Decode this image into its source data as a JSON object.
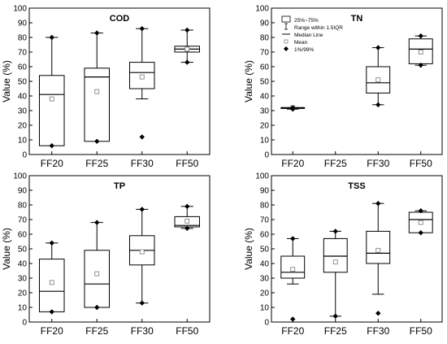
{
  "chart_data": [
    {
      "type": "box",
      "title": "COD",
      "ylabel": "Value (%)",
      "xlabel": "",
      "ylim": [
        0,
        100
      ],
      "yticks": [
        0,
        10,
        20,
        30,
        40,
        50,
        60,
        70,
        80,
        90,
        100
      ],
      "categories": [
        "FF20",
        "FF25",
        "FF30",
        "FF50"
      ],
      "boxes": [
        {
          "category": "FF20",
          "q1": 6,
          "median": 41,
          "q3": 54,
          "mean": 38,
          "whisker_low": null,
          "whisker_high": null,
          "p1": 6,
          "p99": 80
        },
        {
          "category": "FF25",
          "q1": 9,
          "median": 53,
          "q3": 59,
          "mean": 43,
          "whisker_low": null,
          "whisker_high": null,
          "p1": 9,
          "p99": 83
        },
        {
          "category": "FF30",
          "q1": 45,
          "median": 56,
          "q3": 63,
          "mean": 53,
          "whisker_low": 38,
          "whisker_high": 86,
          "p1": 12,
          "p99": 86
        },
        {
          "category": "FF50",
          "q1": 70,
          "median": 72,
          "q3": 74,
          "mean": 72,
          "whisker_low": 63,
          "whisker_high": 85,
          "p1": 63,
          "p99": 85
        }
      ],
      "legend": null
    },
    {
      "type": "box",
      "title": "TN",
      "ylabel": "Value (%)",
      "xlabel": "",
      "ylim": [
        0,
        100
      ],
      "yticks": [
        0,
        10,
        20,
        30,
        40,
        50,
        60,
        70,
        80,
        90,
        100
      ],
      "categories": [
        "FF20",
        "FF25",
        "FF30",
        "FF50"
      ],
      "boxes": [
        {
          "category": "FF20",
          "q1": 32,
          "median": 32,
          "q3": 32,
          "mean": 32,
          "whisker_low": null,
          "whisker_high": null,
          "p1": 31,
          "p99": 32
        },
        {
          "category": "FF25",
          "q1": null,
          "median": null,
          "q3": null,
          "mean": null,
          "whisker_low": null,
          "whisker_high": null,
          "p1": null,
          "p99": null
        },
        {
          "category": "FF30",
          "q1": 42,
          "median": 49,
          "q3": 60,
          "mean": 51,
          "whisker_low": 34,
          "whisker_high": 73,
          "p1": 34,
          "p99": 73
        },
        {
          "category": "FF50",
          "q1": 62,
          "median": 72,
          "q3": 79,
          "mean": 70,
          "whisker_low": 61,
          "whisker_high": 81,
          "p1": 61,
          "p99": 81
        }
      ],
      "legend": {
        "position": "top-left",
        "entries": [
          "25%~75%",
          "Range within 1.5IQR",
          "Median Line",
          "Mean",
          "1%/99%"
        ]
      }
    },
    {
      "type": "box",
      "title": "TP",
      "ylabel": "Value (%)",
      "xlabel": "",
      "ylim": [
        0,
        100
      ],
      "yticks": [
        0,
        10,
        20,
        30,
        40,
        50,
        60,
        70,
        80,
        90,
        100
      ],
      "categories": [
        "FF20",
        "FF25",
        "FF30",
        "FF50"
      ],
      "boxes": [
        {
          "category": "FF20",
          "q1": 7,
          "median": 21,
          "q3": 43,
          "mean": 27,
          "whisker_low": null,
          "whisker_high": null,
          "p1": 7,
          "p99": 54
        },
        {
          "category": "FF25",
          "q1": 10,
          "median": 26,
          "q3": 49,
          "mean": 33,
          "whisker_low": null,
          "whisker_high": null,
          "p1": 10,
          "p99": 68
        },
        {
          "category": "FF30",
          "q1": 39,
          "median": 49,
          "q3": 59,
          "mean": 48,
          "whisker_low": null,
          "whisker_high": null,
          "p1": 13,
          "p99": 77
        },
        {
          "category": "FF50",
          "q1": 65,
          "median": 66,
          "q3": 72,
          "mean": 69,
          "whisker_low": 64,
          "whisker_high": 79,
          "p1": 64,
          "p99": 79
        }
      ],
      "legend": null
    },
    {
      "type": "box",
      "title": "TSS",
      "ylabel": "Value (%)",
      "xlabel": "",
      "ylim": [
        0,
        100
      ],
      "yticks": [
        0,
        10,
        20,
        30,
        40,
        50,
        60,
        70,
        80,
        90,
        100
      ],
      "categories": [
        "FF20",
        "FF25",
        "FF30",
        "FF50"
      ],
      "boxes": [
        {
          "category": "FF20",
          "q1": 30,
          "median": 34,
          "q3": 45,
          "mean": 36,
          "whisker_low": 26,
          "whisker_high": 57,
          "p1": 2,
          "p99": 57
        },
        {
          "category": "FF25",
          "q1": 34,
          "median": 45,
          "q3": 57,
          "mean": 41,
          "whisker_low": null,
          "whisker_high": null,
          "p1": 4,
          "p99": 62
        },
        {
          "category": "FF30",
          "q1": 40,
          "median": 47,
          "q3": 62,
          "mean": 49,
          "whisker_low": 19,
          "whisker_high": 81,
          "p1": 6,
          "p99": 81
        },
        {
          "category": "FF50",
          "q1": 61,
          "median": 70,
          "q3": 75,
          "mean": 68,
          "whisker_low": 61,
          "whisker_high": 76,
          "p1": 61,
          "p99": 76
        }
      ],
      "legend": null
    }
  ]
}
